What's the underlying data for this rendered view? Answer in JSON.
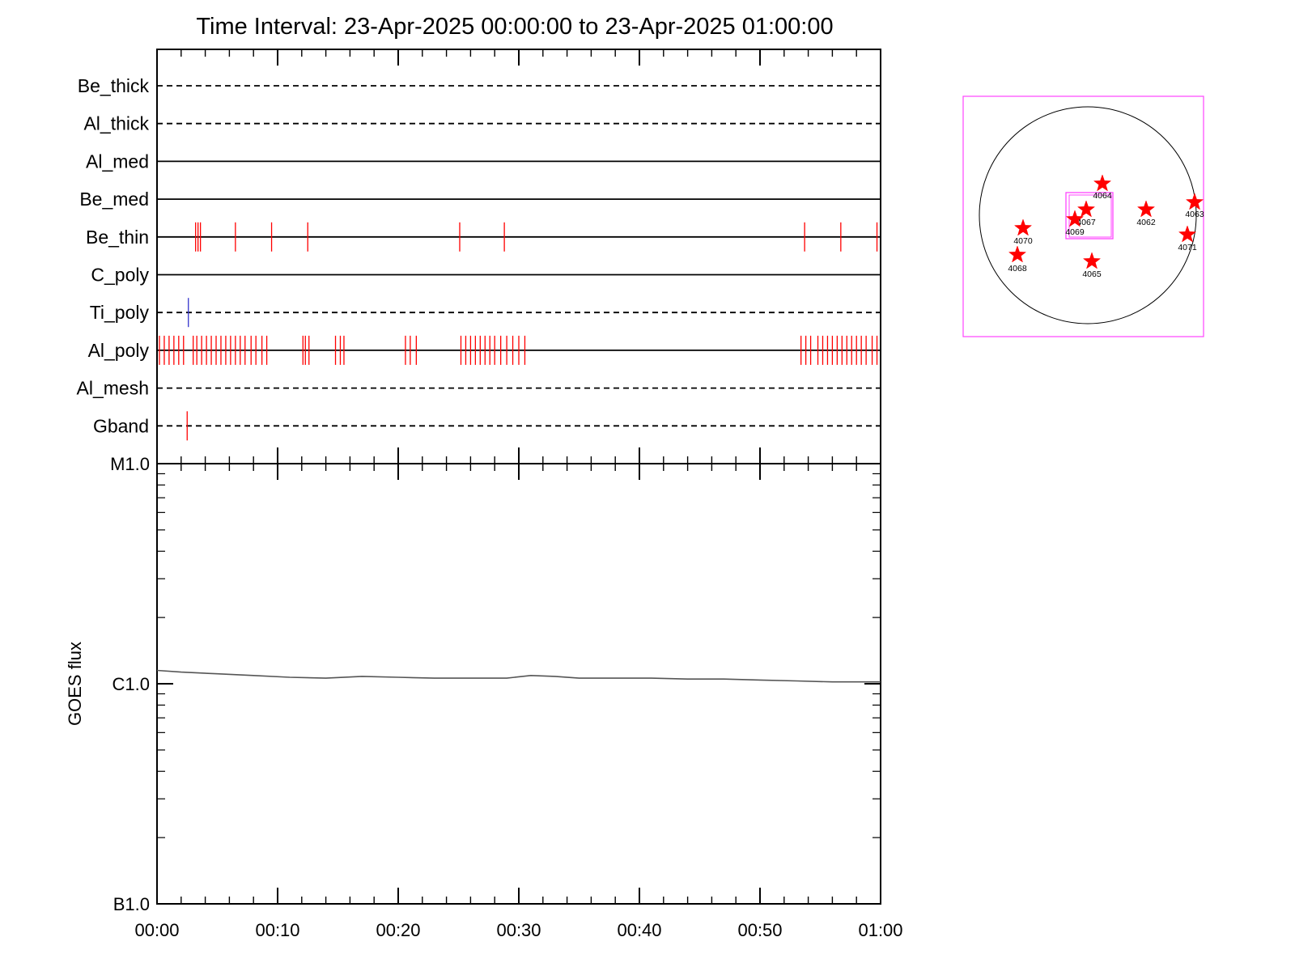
{
  "chart_data": {
    "type": "line",
    "title": "Time Interval: 23-Apr-2025 00:00:00 to 23-Apr-2025 01:00:00",
    "x_tick_labels": [
      "00:00",
      "00:10",
      "00:20",
      "00:30",
      "00:40",
      "00:50",
      "01:00"
    ],
    "xlim_minutes": [
      0,
      60
    ],
    "filter_panel": {
      "rows": [
        {
          "name": "Be_thick",
          "line": "dashed",
          "events": []
        },
        {
          "name": "Al_thick",
          "line": "dashed",
          "events": []
        },
        {
          "name": "Al_med",
          "line": "solid",
          "events": []
        },
        {
          "name": "Be_med",
          "line": "solid",
          "events": []
        },
        {
          "name": "Be_thin",
          "line": "solid",
          "events": [
            {
              "t": 3.2,
              "color": "#ff0000"
            },
            {
              "t": 3.4,
              "color": "#ff0000"
            },
            {
              "t": 3.6,
              "color": "#ff0000"
            },
            {
              "t": 6.5,
              "color": "#ff0000"
            },
            {
              "t": 9.5,
              "color": "#ff0000"
            },
            {
              "t": 12.5,
              "color": "#ff0000"
            },
            {
              "t": 25.1,
              "color": "#ff0000"
            },
            {
              "t": 28.8,
              "color": "#ff0000"
            },
            {
              "t": 53.7,
              "color": "#ff0000"
            },
            {
              "t": 56.7,
              "color": "#ff0000"
            },
            {
              "t": 59.7,
              "color": "#ff0000"
            }
          ]
        },
        {
          "name": "C_poly",
          "line": "solid",
          "events": []
        },
        {
          "name": "Ti_poly",
          "line": "dashed",
          "events": [
            {
              "t": 2.6,
              "color": "#3333cc"
            }
          ]
        },
        {
          "name": "Al_poly",
          "line": "solid",
          "events": [
            {
              "t": 0.2,
              "color": "#ff0000"
            },
            {
              "t": 0.6,
              "color": "#ff0000"
            },
            {
              "t": 1.0,
              "color": "#ff0000"
            },
            {
              "t": 1.4,
              "color": "#ff0000"
            },
            {
              "t": 1.8,
              "color": "#ff0000"
            },
            {
              "t": 2.2,
              "color": "#ff0000"
            },
            {
              "t": 3.0,
              "color": "#ff0000"
            },
            {
              "t": 3.3,
              "color": "#ff0000"
            },
            {
              "t": 3.7,
              "color": "#ff0000"
            },
            {
              "t": 4.1,
              "color": "#ff0000"
            },
            {
              "t": 4.5,
              "color": "#ff0000"
            },
            {
              "t": 4.9,
              "color": "#ff0000"
            },
            {
              "t": 5.3,
              "color": "#ff0000"
            },
            {
              "t": 5.7,
              "color": "#ff0000"
            },
            {
              "t": 6.1,
              "color": "#ff0000"
            },
            {
              "t": 6.5,
              "color": "#ff0000"
            },
            {
              "t": 6.9,
              "color": "#ff0000"
            },
            {
              "t": 7.3,
              "color": "#ff0000"
            },
            {
              "t": 7.8,
              "color": "#ff0000"
            },
            {
              "t": 8.2,
              "color": "#ff0000"
            },
            {
              "t": 8.7,
              "color": "#ff0000"
            },
            {
              "t": 9.1,
              "color": "#ff0000"
            },
            {
              "t": 12.1,
              "color": "#ff0000"
            },
            {
              "t": 12.3,
              "color": "#ff0000"
            },
            {
              "t": 12.6,
              "color": "#ff0000"
            },
            {
              "t": 14.8,
              "color": "#ff0000"
            },
            {
              "t": 15.2,
              "color": "#ff0000"
            },
            {
              "t": 15.5,
              "color": "#ff0000"
            },
            {
              "t": 20.6,
              "color": "#ff0000"
            },
            {
              "t": 21.0,
              "color": "#ff0000"
            },
            {
              "t": 21.5,
              "color": "#ff0000"
            },
            {
              "t": 25.2,
              "color": "#ff0000"
            },
            {
              "t": 25.6,
              "color": "#ff0000"
            },
            {
              "t": 26.0,
              "color": "#ff0000"
            },
            {
              "t": 26.4,
              "color": "#ff0000"
            },
            {
              "t": 26.8,
              "color": "#ff0000"
            },
            {
              "t": 27.2,
              "color": "#ff0000"
            },
            {
              "t": 27.6,
              "color": "#ff0000"
            },
            {
              "t": 28.0,
              "color": "#ff0000"
            },
            {
              "t": 28.5,
              "color": "#ff0000"
            },
            {
              "t": 29.0,
              "color": "#ff0000"
            },
            {
              "t": 29.5,
              "color": "#ff0000"
            },
            {
              "t": 30.0,
              "color": "#ff0000"
            },
            {
              "t": 30.5,
              "color": "#ff0000"
            },
            {
              "t": 53.4,
              "color": "#ff0000"
            },
            {
              "t": 53.8,
              "color": "#ff0000"
            },
            {
              "t": 54.2,
              "color": "#ff0000"
            },
            {
              "t": 54.8,
              "color": "#ff0000"
            },
            {
              "t": 55.2,
              "color": "#ff0000"
            },
            {
              "t": 55.6,
              "color": "#ff0000"
            },
            {
              "t": 56.0,
              "color": "#ff0000"
            },
            {
              "t": 56.4,
              "color": "#ff0000"
            },
            {
              "t": 56.8,
              "color": "#ff0000"
            },
            {
              "t": 57.2,
              "color": "#ff0000"
            },
            {
              "t": 57.6,
              "color": "#ff0000"
            },
            {
              "t": 58.0,
              "color": "#ff0000"
            },
            {
              "t": 58.4,
              "color": "#ff0000"
            },
            {
              "t": 58.8,
              "color": "#ff0000"
            },
            {
              "t": 59.3,
              "color": "#ff0000"
            },
            {
              "t": 59.7,
              "color": "#ff0000"
            }
          ]
        },
        {
          "name": "Al_mesh",
          "line": "dashed",
          "events": []
        },
        {
          "name": "Gband",
          "line": "dashed",
          "events": [
            {
              "t": 2.5,
              "color": "#ff0000"
            }
          ]
        }
      ]
    },
    "goes_panel": {
      "ylabel": "GOES flux",
      "y_scale": "log",
      "ylim": [
        1e-07,
        1e-05
      ],
      "y_tick_labels": [
        {
          "label": "M1.0",
          "value": 1e-05
        },
        {
          "label": "C1.0",
          "value": 1e-06
        },
        {
          "label": "B1.0",
          "value": 1e-07
        }
      ],
      "series": [
        {
          "color": "#555555",
          "x_minutes": [
            0,
            2,
            5,
            8,
            11,
            14,
            17,
            20,
            23,
            26,
            29,
            31,
            33,
            35,
            38,
            41,
            44,
            47,
            50,
            53,
            56,
            59,
            60
          ],
          "values": [
            1.15e-06,
            1.13e-06,
            1.11e-06,
            1.09e-06,
            1.07e-06,
            1.06e-06,
            1.08e-06,
            1.07e-06,
            1.06e-06,
            1.06e-06,
            1.06e-06,
            1.09e-06,
            1.08e-06,
            1.06e-06,
            1.06e-06,
            1.06e-06,
            1.05e-06,
            1.05e-06,
            1.04e-06,
            1.03e-06,
            1.02e-06,
            1.02e-06,
            1.02e-06
          ]
        }
      ]
    },
    "sun_map": {
      "box_color": "#ff44ff",
      "star_color": "#ff0000",
      "regions": [
        {
          "id": "4064"
        },
        {
          "id": "4067"
        },
        {
          "id": "4069"
        },
        {
          "id": "4062"
        },
        {
          "id": "4063"
        },
        {
          "id": "4071"
        },
        {
          "id": "4070"
        },
        {
          "id": "4068"
        },
        {
          "id": "4065"
        }
      ]
    }
  }
}
